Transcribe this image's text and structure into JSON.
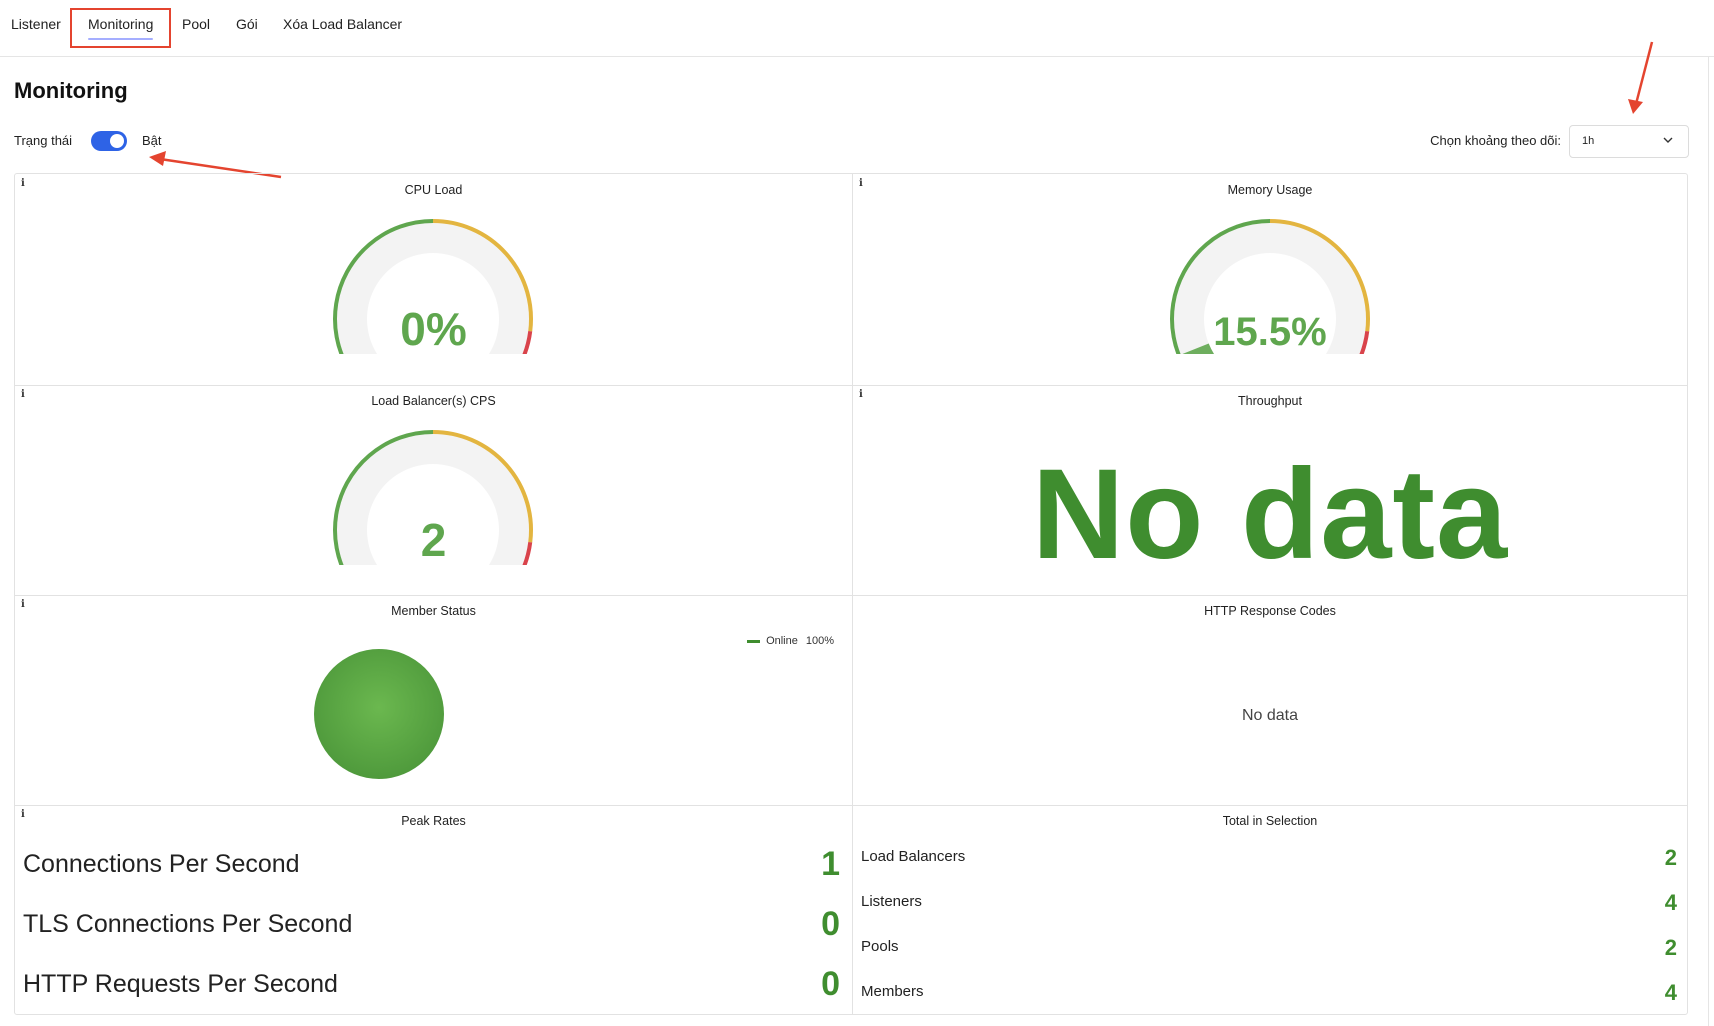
{
  "tabs": [
    {
      "label": "Listener",
      "active": false
    },
    {
      "label": "Monitoring",
      "active": true
    },
    {
      "label": "Pool",
      "active": false
    },
    {
      "label": "Gói",
      "active": false
    },
    {
      "label": "Xóa Load Balancer",
      "active": false
    }
  ],
  "page_title": "Monitoring",
  "status": {
    "label": "Trạng thái",
    "value": "Bật",
    "enabled": true
  },
  "time_range": {
    "label": "Chọn khoảng theo dõi:",
    "value": "1h"
  },
  "colors": {
    "accent": "#2e63e6",
    "good": "#5fa64e",
    "good_dark": "#3f8d2f",
    "warn": "#e3b540",
    "bad": "#d9434b",
    "highlight": "#e4442f"
  },
  "panels": {
    "cpu_load": {
      "title": "CPU Load",
      "value": "0%",
      "fraction": 0.0
    },
    "memory_usage": {
      "title": "Memory Usage",
      "value": "15.5%",
      "fraction": 0.155
    },
    "lb_cps": {
      "title": "Load Balancer(s) CPS",
      "value": "2",
      "fraction": 0.01
    },
    "throughput": {
      "title": "Throughput",
      "value": "No data"
    },
    "member_status": {
      "title": "Member Status",
      "legend": [
        {
          "name": "Online",
          "percent": "100%"
        }
      ]
    },
    "http_codes": {
      "title": "HTTP Response Codes",
      "value": "No data"
    },
    "peak_rates": {
      "title": "Peak Rates",
      "rows": [
        {
          "label": "Connections Per Second",
          "value": "1"
        },
        {
          "label": "TLS Connections Per Second",
          "value": "0"
        },
        {
          "label": "HTTP Requests Per Second",
          "value": "0"
        }
      ]
    },
    "totals": {
      "title": "Total in Selection",
      "rows": [
        {
          "label": "Load Balancers",
          "value": "2"
        },
        {
          "label": "Listeners",
          "value": "4"
        },
        {
          "label": "Pools",
          "value": "2"
        },
        {
          "label": "Members",
          "value": "4"
        }
      ]
    }
  },
  "info_icon": "i"
}
